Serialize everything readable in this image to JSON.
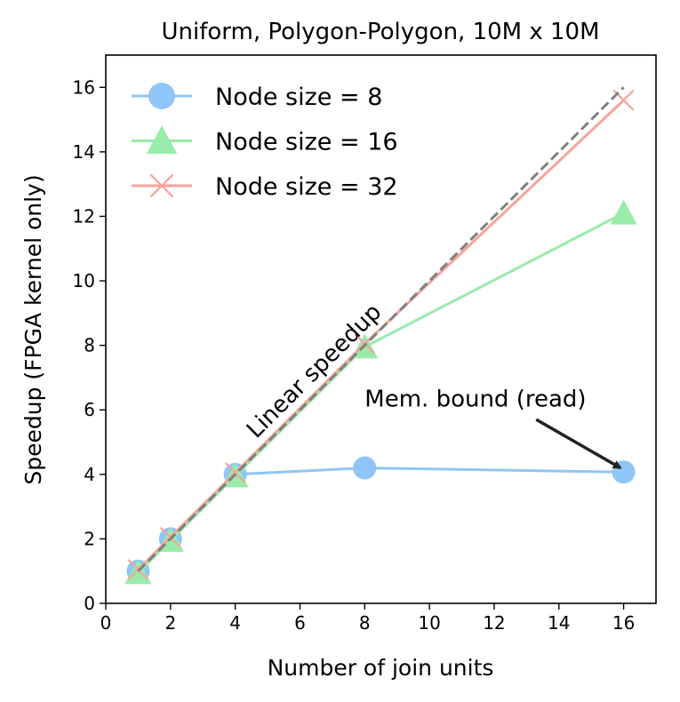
{
  "chart_data": {
    "type": "line",
    "title": "Uniform, Polygon-Polygon, 10M x 10M",
    "xlabel": "Number of join units",
    "ylabel": "Speedup (FPGA kernel only)",
    "xlim": [
      0,
      17
    ],
    "ylim": [
      0,
      17
    ],
    "xticks": [
      0,
      2,
      4,
      6,
      8,
      10,
      12,
      14,
      16
    ],
    "yticks": [
      0,
      2,
      4,
      6,
      8,
      10,
      12,
      14,
      16
    ],
    "grid": false,
    "legend_position": "upper-left",
    "series": [
      {
        "name": "Node size = 8",
        "x": [
          1,
          2,
          4,
          8,
          16
        ],
        "y": [
          1,
          2,
          4,
          4.2,
          4.07
        ],
        "color": "#8fc5f7",
        "marker": "circle"
      },
      {
        "name": "Node size = 16",
        "x": [
          1,
          2,
          4,
          8,
          16
        ],
        "y": [
          0.95,
          1.95,
          3.95,
          7.95,
          12.1
        ],
        "color": "#99ebaa",
        "marker": "triangle"
      },
      {
        "name": "Node size = 32",
        "x": [
          1,
          2,
          4,
          8,
          16
        ],
        "y": [
          1.05,
          2.05,
          4.05,
          8.05,
          15.6
        ],
        "color": "#f7a39a",
        "marker": "x"
      }
    ],
    "reference_line": {
      "label": "Linear speedup",
      "x": [
        1,
        16
      ],
      "y": [
        1,
        16
      ],
      "color": "#808080",
      "style": "dashed"
    },
    "annotations": [
      {
        "text": "Mem. bound (read)",
        "text_at": [
          8,
          6.1
        ],
        "arrow_from": [
          13.3,
          5.7
        ],
        "arrow_to": [
          15.9,
          4.2
        ]
      }
    ]
  }
}
